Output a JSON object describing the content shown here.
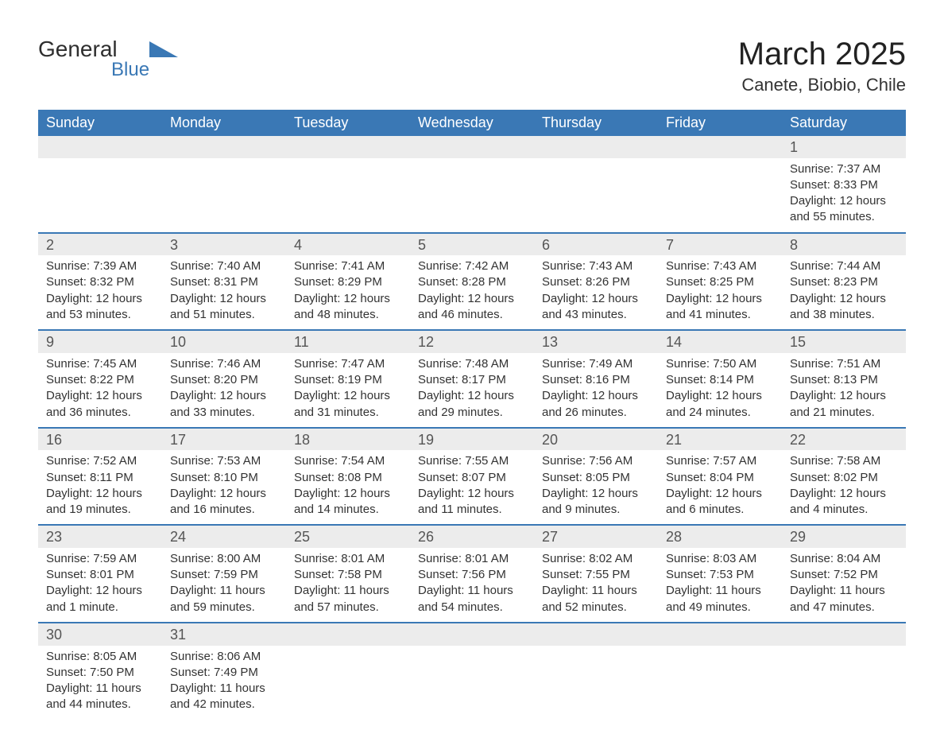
{
  "logo": {
    "text1": "General",
    "text2": "Blue"
  },
  "title": "March 2025",
  "location": "Canete, Biobio, Chile",
  "colors": {
    "header_bg": "#3a78b5",
    "header_text": "#ffffff",
    "daynum_bg": "#ececec",
    "row_divider": "#3a78b5",
    "body_text": "#333333",
    "page_bg": "#ffffff"
  },
  "weekdays": [
    "Sunday",
    "Monday",
    "Tuesday",
    "Wednesday",
    "Thursday",
    "Friday",
    "Saturday"
  ],
  "weeks": [
    [
      null,
      null,
      null,
      null,
      null,
      null,
      {
        "n": "1",
        "sunrise": "Sunrise: 7:37 AM",
        "sunset": "Sunset: 8:33 PM",
        "daylight": "Daylight: 12 hours and 55 minutes."
      }
    ],
    [
      {
        "n": "2",
        "sunrise": "Sunrise: 7:39 AM",
        "sunset": "Sunset: 8:32 PM",
        "daylight": "Daylight: 12 hours and 53 minutes."
      },
      {
        "n": "3",
        "sunrise": "Sunrise: 7:40 AM",
        "sunset": "Sunset: 8:31 PM",
        "daylight": "Daylight: 12 hours and 51 minutes."
      },
      {
        "n": "4",
        "sunrise": "Sunrise: 7:41 AM",
        "sunset": "Sunset: 8:29 PM",
        "daylight": "Daylight: 12 hours and 48 minutes."
      },
      {
        "n": "5",
        "sunrise": "Sunrise: 7:42 AM",
        "sunset": "Sunset: 8:28 PM",
        "daylight": "Daylight: 12 hours and 46 minutes."
      },
      {
        "n": "6",
        "sunrise": "Sunrise: 7:43 AM",
        "sunset": "Sunset: 8:26 PM",
        "daylight": "Daylight: 12 hours and 43 minutes."
      },
      {
        "n": "7",
        "sunrise": "Sunrise: 7:43 AM",
        "sunset": "Sunset: 8:25 PM",
        "daylight": "Daylight: 12 hours and 41 minutes."
      },
      {
        "n": "8",
        "sunrise": "Sunrise: 7:44 AM",
        "sunset": "Sunset: 8:23 PM",
        "daylight": "Daylight: 12 hours and 38 minutes."
      }
    ],
    [
      {
        "n": "9",
        "sunrise": "Sunrise: 7:45 AM",
        "sunset": "Sunset: 8:22 PM",
        "daylight": "Daylight: 12 hours and 36 minutes."
      },
      {
        "n": "10",
        "sunrise": "Sunrise: 7:46 AM",
        "sunset": "Sunset: 8:20 PM",
        "daylight": "Daylight: 12 hours and 33 minutes."
      },
      {
        "n": "11",
        "sunrise": "Sunrise: 7:47 AM",
        "sunset": "Sunset: 8:19 PM",
        "daylight": "Daylight: 12 hours and 31 minutes."
      },
      {
        "n": "12",
        "sunrise": "Sunrise: 7:48 AM",
        "sunset": "Sunset: 8:17 PM",
        "daylight": "Daylight: 12 hours and 29 minutes."
      },
      {
        "n": "13",
        "sunrise": "Sunrise: 7:49 AM",
        "sunset": "Sunset: 8:16 PM",
        "daylight": "Daylight: 12 hours and 26 minutes."
      },
      {
        "n": "14",
        "sunrise": "Sunrise: 7:50 AM",
        "sunset": "Sunset: 8:14 PM",
        "daylight": "Daylight: 12 hours and 24 minutes."
      },
      {
        "n": "15",
        "sunrise": "Sunrise: 7:51 AM",
        "sunset": "Sunset: 8:13 PM",
        "daylight": "Daylight: 12 hours and 21 minutes."
      }
    ],
    [
      {
        "n": "16",
        "sunrise": "Sunrise: 7:52 AM",
        "sunset": "Sunset: 8:11 PM",
        "daylight": "Daylight: 12 hours and 19 minutes."
      },
      {
        "n": "17",
        "sunrise": "Sunrise: 7:53 AM",
        "sunset": "Sunset: 8:10 PM",
        "daylight": "Daylight: 12 hours and 16 minutes."
      },
      {
        "n": "18",
        "sunrise": "Sunrise: 7:54 AM",
        "sunset": "Sunset: 8:08 PM",
        "daylight": "Daylight: 12 hours and 14 minutes."
      },
      {
        "n": "19",
        "sunrise": "Sunrise: 7:55 AM",
        "sunset": "Sunset: 8:07 PM",
        "daylight": "Daylight: 12 hours and 11 minutes."
      },
      {
        "n": "20",
        "sunrise": "Sunrise: 7:56 AM",
        "sunset": "Sunset: 8:05 PM",
        "daylight": "Daylight: 12 hours and 9 minutes."
      },
      {
        "n": "21",
        "sunrise": "Sunrise: 7:57 AM",
        "sunset": "Sunset: 8:04 PM",
        "daylight": "Daylight: 12 hours and 6 minutes."
      },
      {
        "n": "22",
        "sunrise": "Sunrise: 7:58 AM",
        "sunset": "Sunset: 8:02 PM",
        "daylight": "Daylight: 12 hours and 4 minutes."
      }
    ],
    [
      {
        "n": "23",
        "sunrise": "Sunrise: 7:59 AM",
        "sunset": "Sunset: 8:01 PM",
        "daylight": "Daylight: 12 hours and 1 minute."
      },
      {
        "n": "24",
        "sunrise": "Sunrise: 8:00 AM",
        "sunset": "Sunset: 7:59 PM",
        "daylight": "Daylight: 11 hours and 59 minutes."
      },
      {
        "n": "25",
        "sunrise": "Sunrise: 8:01 AM",
        "sunset": "Sunset: 7:58 PM",
        "daylight": "Daylight: 11 hours and 57 minutes."
      },
      {
        "n": "26",
        "sunrise": "Sunrise: 8:01 AM",
        "sunset": "Sunset: 7:56 PM",
        "daylight": "Daylight: 11 hours and 54 minutes."
      },
      {
        "n": "27",
        "sunrise": "Sunrise: 8:02 AM",
        "sunset": "Sunset: 7:55 PM",
        "daylight": "Daylight: 11 hours and 52 minutes."
      },
      {
        "n": "28",
        "sunrise": "Sunrise: 8:03 AM",
        "sunset": "Sunset: 7:53 PM",
        "daylight": "Daylight: 11 hours and 49 minutes."
      },
      {
        "n": "29",
        "sunrise": "Sunrise: 8:04 AM",
        "sunset": "Sunset: 7:52 PM",
        "daylight": "Daylight: 11 hours and 47 minutes."
      }
    ],
    [
      {
        "n": "30",
        "sunrise": "Sunrise: 8:05 AM",
        "sunset": "Sunset: 7:50 PM",
        "daylight": "Daylight: 11 hours and 44 minutes."
      },
      {
        "n": "31",
        "sunrise": "Sunrise: 8:06 AM",
        "sunset": "Sunset: 7:49 PM",
        "daylight": "Daylight: 11 hours and 42 minutes."
      },
      null,
      null,
      null,
      null,
      null
    ]
  ]
}
